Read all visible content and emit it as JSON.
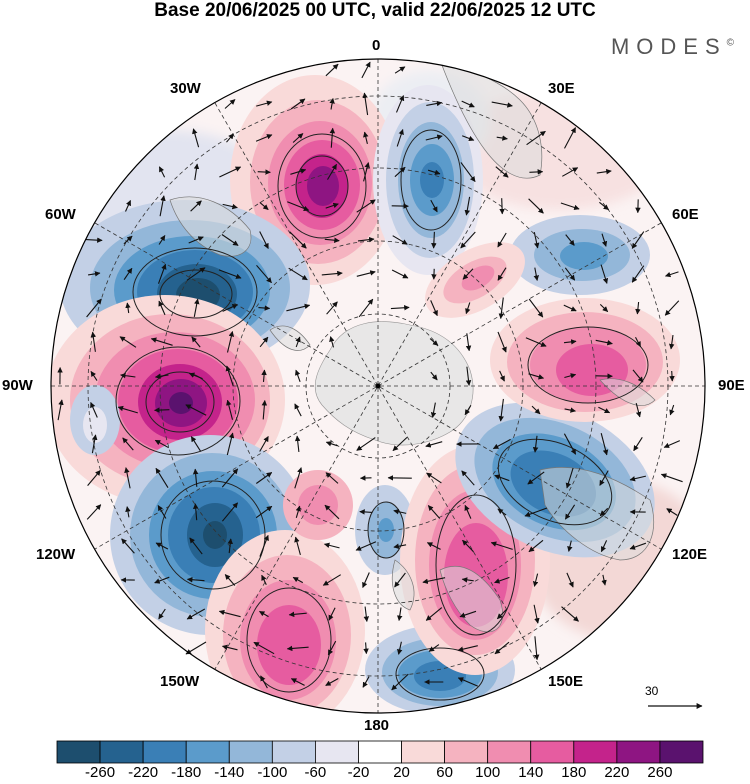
{
  "title": "Base 20/06/2025 00 UTC, valid 22/06/2025 12 UTC",
  "brand": "MODES",
  "brand_mark": "©",
  "longitude_labels": {
    "lon_0": "0",
    "lon_30e": "30E",
    "lon_60e": "60E",
    "lon_90e": "90E",
    "lon_120e": "120E",
    "lon_150e": "150E",
    "lon_180": "180",
    "lon_150w": "150W",
    "lon_120w": "120W",
    "lon_90w": "90W",
    "lon_60w": "60W",
    "lon_30w": "30W"
  },
  "vector_reference": "30",
  "colorbar": {
    "ticks": [
      "-260",
      "-220",
      "-180",
      "-140",
      "-100",
      "-60",
      "-20",
      "20",
      "60",
      "100",
      "140",
      "180",
      "220",
      "260"
    ],
    "colors": [
      "#1d4e6e",
      "#25628f",
      "#3a7fb6",
      "#5b9bcb",
      "#93b7d9",
      "#c3d0e6",
      "#e7e6f1",
      "#ffffff",
      "#f9dad9",
      "#f5b3c0",
      "#f08db0",
      "#e65ca0",
      "#c4238b",
      "#8e1582",
      "#5a126e"
    ]
  },
  "colors": {
    "land": "#e6e6e6",
    "background": "#ffffff",
    "graticule": "#333333"
  }
}
